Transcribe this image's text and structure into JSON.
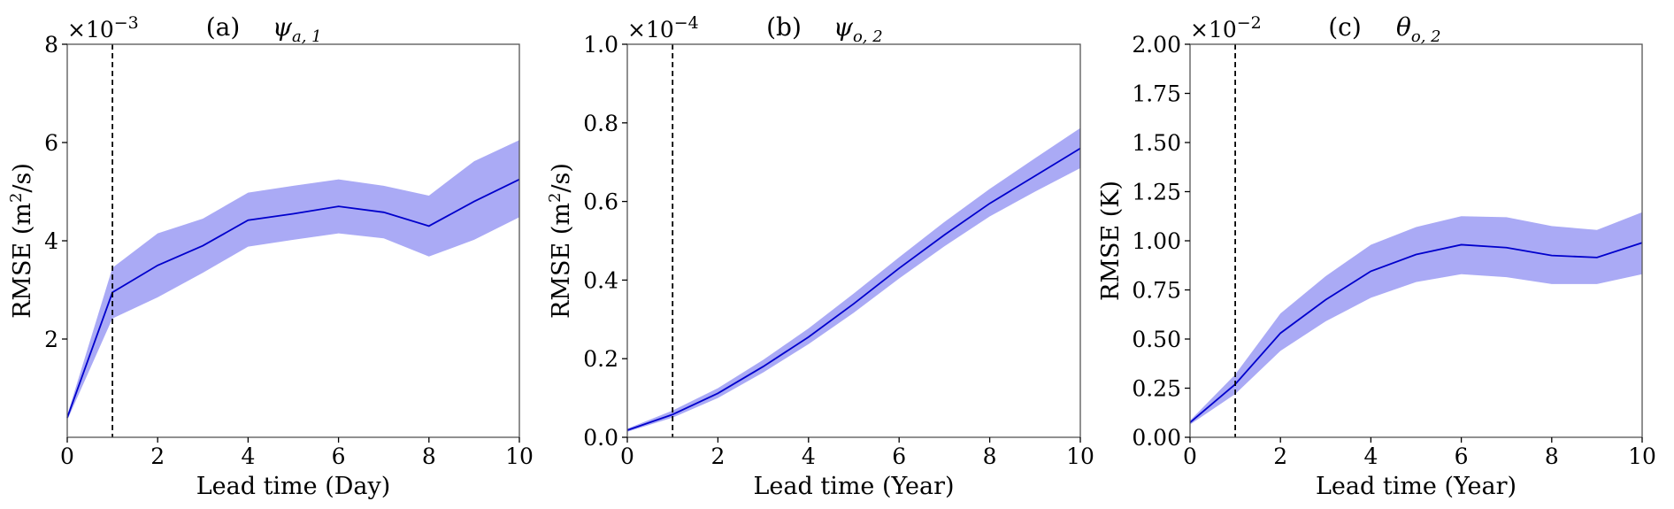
{
  "chart_data": [
    {
      "type": "line",
      "panel": "(a)",
      "title_symbol": "ψ",
      "title_subscript": "a, 1",
      "xlabel": "Lead time (Day)",
      "ylabel_prefix": "RMSE (m",
      "ylabel_sup": "2",
      "ylabel_suffix": "/s)",
      "multiplier_base": "×10",
      "multiplier_exp": "−3",
      "xlim": [
        0,
        10
      ],
      "ylim": [
        0,
        8
      ],
      "xticks": [
        0,
        2,
        4,
        6,
        8,
        10
      ],
      "xtick_labels": [
        "0",
        "2",
        "4",
        "6",
        "8",
        "10"
      ],
      "yticks": [
        2,
        4,
        6,
        8
      ],
      "ytick_labels": [
        "2",
        "4",
        "6",
        "8"
      ],
      "vline_x": 1,
      "line_color": "#0000cc",
      "band_color": "#aaaaf5",
      "series": [
        {
          "x": [
            0,
            1,
            2,
            3,
            4,
            5,
            6,
            7,
            8,
            9,
            10
          ],
          "mean": [
            0.4,
            2.95,
            3.5,
            3.9,
            4.42,
            4.55,
            4.7,
            4.58,
            4.3,
            4.8,
            5.25
          ],
          "upper": [
            0.45,
            3.45,
            4.15,
            4.45,
            4.98,
            5.12,
            5.25,
            5.12,
            4.92,
            5.62,
            6.05
          ],
          "lower": [
            0.35,
            2.42,
            2.85,
            3.35,
            3.88,
            4.02,
            4.15,
            4.05,
            3.68,
            4.02,
            4.48
          ]
        }
      ]
    },
    {
      "type": "line",
      "panel": "(b)",
      "title_symbol": "ψ",
      "title_subscript": "o, 2",
      "xlabel": "Lead time (Year)",
      "ylabel_prefix": "RMSE (m",
      "ylabel_sup": "2",
      "ylabel_suffix": "/s)",
      "multiplier_base": "×10",
      "multiplier_exp": "−4",
      "xlim": [
        0,
        10
      ],
      "ylim": [
        0,
        1.0
      ],
      "xticks": [
        0,
        2,
        4,
        6,
        8,
        10
      ],
      "xtick_labels": [
        "0",
        "2",
        "4",
        "6",
        "8",
        "10"
      ],
      "yticks": [
        0,
        0.2,
        0.4,
        0.6,
        0.8,
        1.0
      ],
      "ytick_labels": [
        "0.0",
        "0.2",
        "0.4",
        "0.6",
        "0.8",
        "1.0"
      ],
      "vline_x": 1,
      "line_color": "#0000cc",
      "band_color": "#aaaaf5",
      "series": [
        {
          "x": [
            0,
            1,
            2,
            3,
            4,
            5,
            6,
            7,
            8,
            9,
            10
          ],
          "mean": [
            0.018,
            0.058,
            0.112,
            0.18,
            0.255,
            0.34,
            0.43,
            0.515,
            0.595,
            0.665,
            0.735
          ],
          "upper": [
            0.022,
            0.068,
            0.125,
            0.197,
            0.277,
            0.366,
            0.458,
            0.548,
            0.632,
            0.71,
            0.787
          ],
          "lower": [
            0.014,
            0.05,
            0.1,
            0.165,
            0.237,
            0.317,
            0.404,
            0.486,
            0.562,
            0.625,
            0.685
          ]
        }
      ]
    },
    {
      "type": "line",
      "panel": "(c)",
      "title_symbol": "θ",
      "title_subscript": "o, 2",
      "xlabel": "Lead time (Year)",
      "ylabel_prefix": "RMSE (K)",
      "ylabel_sup": "",
      "ylabel_suffix": "",
      "multiplier_base": "×10",
      "multiplier_exp": "−2",
      "xlim": [
        0,
        10
      ],
      "ylim": [
        0,
        2.0
      ],
      "xticks": [
        0,
        2,
        4,
        6,
        8,
        10
      ],
      "xtick_labels": [
        "0",
        "2",
        "4",
        "6",
        "8",
        "10"
      ],
      "yticks": [
        0,
        0.25,
        0.5,
        0.75,
        1.0,
        1.25,
        1.5,
        1.75,
        2.0
      ],
      "ytick_labels": [
        "0.00",
        "0.25",
        "0.50",
        "0.75",
        "1.00",
        "1.25",
        "1.50",
        "1.75",
        "2.00"
      ],
      "vline_x": 1,
      "line_color": "#0000cc",
      "band_color": "#aaaaf5",
      "series": [
        {
          "x": [
            0,
            1,
            2,
            3,
            4,
            5,
            6,
            7,
            8,
            9,
            10
          ],
          "mean": [
            0.075,
            0.27,
            0.53,
            0.7,
            0.845,
            0.93,
            0.98,
            0.965,
            0.925,
            0.915,
            0.99
          ],
          "upper": [
            0.085,
            0.32,
            0.63,
            0.82,
            0.98,
            1.07,
            1.125,
            1.12,
            1.075,
            1.055,
            1.145
          ],
          "lower": [
            0.065,
            0.22,
            0.44,
            0.59,
            0.71,
            0.79,
            0.83,
            0.815,
            0.78,
            0.78,
            0.83
          ]
        }
      ]
    }
  ]
}
